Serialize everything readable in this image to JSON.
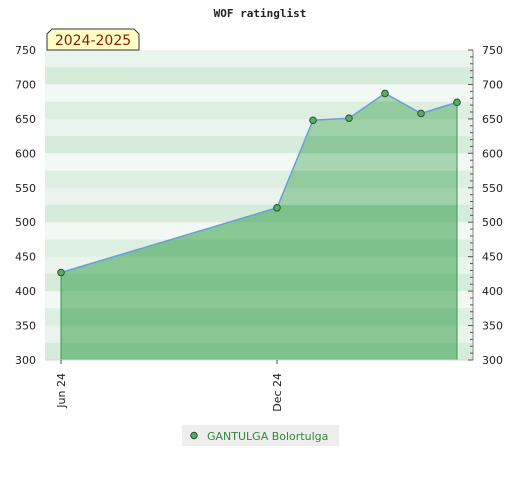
{
  "chart_data": {
    "type": "area",
    "title": "WOF ratinglist",
    "season_label": "2024-2025",
    "ylim": [
      300,
      750
    ],
    "y_ticks": [
      300,
      350,
      400,
      450,
      500,
      550,
      600,
      650,
      700,
      750
    ],
    "x_ticks": [
      {
        "label": "Jun 24",
        "x": "2024-06"
      },
      {
        "label": "Dec 24",
        "x": "2024-12"
      }
    ],
    "series": [
      {
        "name": "GANTULGA Bolortulga",
        "color": "#6a9fd9",
        "points": [
          {
            "x": "2024-06",
            "y": 427
          },
          {
            "x": "2024-12",
            "y": 521
          },
          {
            "x": "2025-01",
            "y": 648
          },
          {
            "x": "2025-02",
            "y": 651
          },
          {
            "x": "2025-03",
            "y": 687
          },
          {
            "x": "2025-04",
            "y": 658
          },
          {
            "x": "2025-05",
            "y": 674
          }
        ]
      }
    ],
    "legend_position": "bottom-center",
    "grid": true
  }
}
